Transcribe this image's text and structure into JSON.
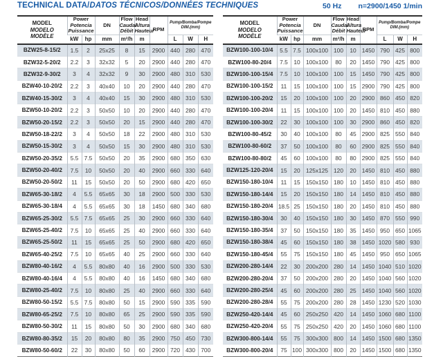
{
  "page": {
    "title_main": "TECHNICAL DATA/",
    "title_i18n": "DATOS TÉCNICOS/DONNÉES TECHNIQUES",
    "frequency": "50 Hz",
    "speed_note": "n=2900/1450 1/min"
  },
  "colors": {
    "accent_blue": "#1a5ca6",
    "row_shade": "#dce3ea",
    "column_rule": "#b6bdc5",
    "dark_line": "#2f2f2f"
  },
  "header": {
    "model_lines": [
      "MODEL",
      "MODELO",
      "MODÈLE"
    ],
    "power_lines": [
      "Power",
      "Potencia",
      "Puissance"
    ],
    "dn_label": "DN",
    "flow_lines": [
      "Flow",
      "Caudal",
      "Débit"
    ],
    "head_lines": [
      "Head",
      "Altura",
      "Hauteur"
    ],
    "rpm_label": "RPM",
    "dim_line1": "Pump/Bomba/Pompe",
    "dim_line2": "DIM.(mm)",
    "units": {
      "kw": "kW",
      "hp": "hp",
      "mm": "mm",
      "flow": "m³/h",
      "head": "m",
      "l": "L",
      "w": "W",
      "h": "H"
    }
  },
  "tables": [
    {
      "name": "left",
      "rows": [
        [
          "BZW25-8-15/2",
          "1.5",
          "2",
          "25x25",
          "8",
          "15",
          "2900",
          "440",
          "280",
          "470"
        ],
        [
          "BZW32-5-20/2",
          "2.2",
          "3",
          "32x32",
          "5",
          "20",
          "2900",
          "440",
          "280",
          "470"
        ],
        [
          "BZW32-9-30/2",
          "3",
          "4",
          "32x32",
          "9",
          "30",
          "2900",
          "480",
          "310",
          "530"
        ],
        [
          "BZW40-10-20/2",
          "2.2",
          "3",
          "40x40",
          "10",
          "20",
          "2900",
          "440",
          "280",
          "470"
        ],
        [
          "BZW40-15-30/2",
          "3",
          "4",
          "40x40",
          "15",
          "30",
          "2900",
          "480",
          "310",
          "530"
        ],
        [
          "BZW50-10-20/2",
          "2.2",
          "3",
          "50x50",
          "10",
          "20",
          "2900",
          "440",
          "280",
          "470"
        ],
        [
          "BZW50-20-15/2",
          "2.2",
          "3",
          "50x50",
          "20",
          "15",
          "2900",
          "440",
          "280",
          "470"
        ],
        [
          "BZW50-18-22/2",
          "3",
          "4",
          "50x50",
          "18",
          "22",
          "2900",
          "480",
          "310",
          "530"
        ],
        [
          "BZW50-15-30/2",
          "3",
          "4",
          "50x50",
          "15",
          "30",
          "2900",
          "480",
          "310",
          "530"
        ],
        [
          "BZW50-20-35/2",
          "5.5",
          "7.5",
          "50x50",
          "20",
          "35",
          "2900",
          "680",
          "350",
          "630"
        ],
        [
          "BZW50-20-40/2",
          "7.5",
          "10",
          "50x50",
          "20",
          "40",
          "2900",
          "660",
          "330",
          "640"
        ],
        [
          "BZW50-20-50/2",
          "11",
          "15",
          "50x50",
          "20",
          "50",
          "2900",
          "680",
          "420",
          "650"
        ],
        [
          "BZW65-30-18/2",
          "4",
          "5.5",
          "65x65",
          "30",
          "18",
          "2900",
          "500",
          "330",
          "530"
        ],
        [
          "BZW65-30-18/4",
          "4",
          "5.5",
          "65x65",
          "30",
          "18",
          "1450",
          "680",
          "340",
          "680"
        ],
        [
          "BZW65-25-30/2",
          "5.5",
          "7.5",
          "65x65",
          "25",
          "30",
          "2900",
          "660",
          "330",
          "640"
        ],
        [
          "BZW65-25-40/2",
          "7.5",
          "10",
          "65x65",
          "25",
          "40",
          "2900",
          "660",
          "330",
          "640"
        ],
        [
          "BZW65-25-50/2",
          "11",
          "15",
          "65x65",
          "25",
          "50",
          "2900",
          "680",
          "420",
          "650"
        ],
        [
          "BZW65-40-25/2",
          "7.5",
          "10",
          "65x65",
          "40",
          "25",
          "2900",
          "660",
          "330",
          "640"
        ],
        [
          "BZW80-40-16/2",
          "4",
          "5.5",
          "80x80",
          "40",
          "16",
          "2900",
          "500",
          "330",
          "530"
        ],
        [
          "BZW80-40-16/4",
          "4",
          "5.5",
          "80x80",
          "40",
          "16",
          "1450",
          "680",
          "340",
          "680"
        ],
        [
          "BZW80-25-40/2",
          "7.5",
          "10",
          "80x80",
          "25",
          "40",
          "2900",
          "660",
          "330",
          "640"
        ],
        [
          "BZW80-50-15/2",
          "5.5",
          "7.5",
          "80x80",
          "50",
          "15",
          "2900",
          "590",
          "335",
          "590"
        ],
        [
          "BZW80-65-25/2",
          "7.5",
          "10",
          "80x80",
          "65",
          "25",
          "2900",
          "590",
          "335",
          "590"
        ],
        [
          "BZW80-50-30/2",
          "11",
          "15",
          "80x80",
          "50",
          "30",
          "2900",
          "680",
          "340",
          "680"
        ],
        [
          "BZW80-80-35/2",
          "15",
          "20",
          "80x80",
          "80",
          "35",
          "2900",
          "750",
          "450",
          "730"
        ],
        [
          "BZW80-50-60/2",
          "22",
          "30",
          "80x80",
          "50",
          "60",
          "2900",
          "720",
          "430",
          "700"
        ]
      ]
    },
    {
      "name": "right",
      "rows": [
        [
          "BZW100-100-10/4",
          "5.5",
          "7.5",
          "100x100",
          "100",
          "10",
          "1450",
          "790",
          "425",
          "800"
        ],
        [
          "BZW100-80-20/4",
          "7.5",
          "10",
          "100x100",
          "80",
          "20",
          "1450",
          "790",
          "425",
          "800"
        ],
        [
          "BZW100-100-15/4",
          "7.5",
          "10",
          "100x100",
          "100",
          "15",
          "1450",
          "790",
          "425",
          "800"
        ],
        [
          "BZW100-100-15/2",
          "11",
          "15",
          "100x100",
          "100",
          "15",
          "2900",
          "790",
          "425",
          "800"
        ],
        [
          "BZW100-100-20/2",
          "15",
          "20",
          "100x100",
          "100",
          "20",
          "2900",
          "860",
          "450",
          "820"
        ],
        [
          "BZW100-100-20/4",
          "11",
          "15",
          "100x100",
          "100",
          "20",
          "1450",
          "810",
          "450",
          "880"
        ],
        [
          "BZW100-100-30/2",
          "22",
          "30",
          "100x100",
          "100",
          "30",
          "2900",
          "860",
          "450",
          "820"
        ],
        [
          "BZW100-80-45/2",
          "30",
          "40",
          "100x100",
          "80",
          "45",
          "2900",
          "825",
          "550",
          "840"
        ],
        [
          "BZW100-80-60/2",
          "37",
          "50",
          "100x100",
          "80",
          "60",
          "2900",
          "825",
          "550",
          "840"
        ],
        [
          "BZW100-80-80/2",
          "45",
          "60",
          "100x100",
          "80",
          "80",
          "2900",
          "825",
          "550",
          "840"
        ],
        [
          "BZW125-120-20/4",
          "15",
          "20",
          "125x125",
          "120",
          "20",
          "1450",
          "810",
          "450",
          "880"
        ],
        [
          "BZW150-180-10/4",
          "11",
          "15",
          "150x150",
          "180",
          "10",
          "1450",
          "810",
          "450",
          "880"
        ],
        [
          "BZW150-180-14/4",
          "15",
          "20",
          "150x150",
          "180",
          "14",
          "1450",
          "810",
          "450",
          "880"
        ],
        [
          "BZW150-180-20/4",
          "18.5",
          "25",
          "150x150",
          "180",
          "20",
          "1450",
          "810",
          "450",
          "880"
        ],
        [
          "BZW150-180-30/4",
          "30",
          "40",
          "150x150",
          "180",
          "30",
          "1450",
          "870",
          "550",
          "990"
        ],
        [
          "BZW150-180-35/4",
          "37",
          "50",
          "150x150",
          "180",
          "35",
          "1450",
          "950",
          "650",
          "1065"
        ],
        [
          "BZW150-180-38/4",
          "45",
          "60",
          "150x150",
          "180",
          "38",
          "1450",
          "1020",
          "580",
          "930"
        ],
        [
          "BZW150-180-45/4",
          "55",
          "75",
          "150x150",
          "180",
          "45",
          "1450",
          "950",
          "650",
          "1065"
        ],
        [
          "BZW200-280-14/4",
          "22",
          "30",
          "200x200",
          "280",
          "14",
          "1450",
          "1040",
          "510",
          "1020"
        ],
        [
          "BZW200-280-20/4",
          "37",
          "50",
          "200x200",
          "280",
          "20",
          "1450",
          "1040",
          "560",
          "1020"
        ],
        [
          "BZW200-280-25/4",
          "45",
          "60",
          "200x200",
          "280",
          "25",
          "1450",
          "1040",
          "560",
          "1020"
        ],
        [
          "BZW200-280-28/4",
          "55",
          "75",
          "200x200",
          "280",
          "28",
          "1450",
          "1230",
          "520",
          "1030"
        ],
        [
          "BZW250-420-14/4",
          "45",
          "60",
          "250x250",
          "420",
          "14",
          "1450",
          "1060",
          "680",
          "1100"
        ],
        [
          "BZW250-420-20/4",
          "55",
          "75",
          "250x250",
          "420",
          "20",
          "1450",
          "1060",
          "680",
          "1100"
        ],
        [
          "BZW300-800-14/4",
          "55",
          "75",
          "300x300",
          "800",
          "14",
          "1450",
          "1500",
          "680",
          "1350"
        ],
        [
          "BZW300-800-20/4",
          "75",
          "100",
          "300x300",
          "800",
          "20",
          "1450",
          "1500",
          "680",
          "1350"
        ]
      ]
    }
  ]
}
